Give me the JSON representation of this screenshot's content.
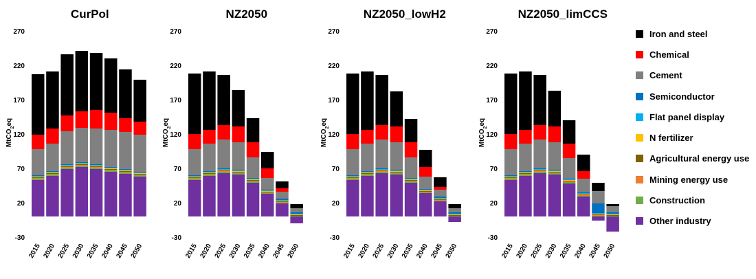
{
  "chart_data": {
    "type": "bar",
    "stacked": true,
    "ylabel": "MtCO2eq",
    "ylim": [
      -30,
      270
    ],
    "yticks": [
      270,
      220,
      170,
      120,
      70,
      20,
      -30
    ],
    "categories": [
      "2015",
      "2020",
      "2025",
      "2030",
      "2035",
      "2040",
      "2045",
      "2050"
    ],
    "legend_position": "right",
    "series_meta": [
      {
        "key": "other",
        "name": "Other industry",
        "color": "#7030A0"
      },
      {
        "key": "construction",
        "name": "Construction",
        "color": "#70AD47"
      },
      {
        "key": "mining",
        "name": "Mining energy use",
        "color": "#ED7D31"
      },
      {
        "key": "agri",
        "name": "Agricultural energy use",
        "color": "#806000"
      },
      {
        "key": "nfert",
        "name": "N fertilizer",
        "color": "#FFC000"
      },
      {
        "key": "fpd",
        "name": "Flat panel display",
        "color": "#00B0F0"
      },
      {
        "key": "semi",
        "name": "Semiconductor",
        "color": "#0070C0"
      },
      {
        "key": "cement",
        "name": "Cement",
        "color": "#808080"
      },
      {
        "key": "chemical",
        "name": "Chemical",
        "color": "#FF0000"
      },
      {
        "key": "iron",
        "name": "Iron and steel",
        "color": "#000000"
      }
    ],
    "legend_order": [
      "iron",
      "chemical",
      "cement",
      "semi",
      "fpd",
      "nfert",
      "agri",
      "mining",
      "construction",
      "other"
    ],
    "panels": [
      {
        "title": "CurPol",
        "series": {
          "other": [
            53,
            59,
            69,
            72,
            69,
            65,
            62,
            58
          ],
          "construction": [
            2,
            2,
            2,
            2,
            2,
            2,
            2,
            2
          ],
          "mining": [
            1,
            1,
            1,
            1,
            1,
            1,
            1,
            1
          ],
          "agri": [
            1,
            1,
            1,
            1,
            1,
            1,
            1,
            1
          ],
          "nfert": [
            1,
            1,
            1,
            1,
            1,
            1,
            1,
            1
          ],
          "fpd": [
            1,
            1,
            1,
            1,
            1,
            1,
            1,
            1
          ],
          "semi": [
            1,
            1,
            1,
            1,
            1,
            1,
            1,
            1
          ],
          "cement": [
            38,
            40,
            48,
            50,
            52,
            54,
            54,
            54
          ],
          "chemical": [
            21,
            22,
            23,
            24,
            27,
            25,
            20,
            19
          ],
          "iron": [
            88,
            83,
            89,
            88,
            83,
            79,
            71,
            61
          ]
        }
      },
      {
        "title": "NZ2050",
        "series": {
          "other": [
            53,
            59,
            63,
            61,
            49,
            33,
            19,
            -10
          ],
          "construction": [
            2,
            2,
            2,
            2,
            2,
            1,
            1,
            1
          ],
          "mining": [
            1,
            1,
            1,
            1,
            1,
            1,
            1,
            0
          ],
          "agri": [
            1,
            1,
            1,
            1,
            1,
            1,
            1,
            1
          ],
          "nfert": [
            1,
            1,
            1,
            1,
            1,
            1,
            1,
            1
          ],
          "fpd": [
            1,
            1,
            1,
            1,
            1,
            1,
            1,
            1
          ],
          "semi": [
            1,
            1,
            1,
            1,
            1,
            1,
            2,
            2
          ],
          "cement": [
            38,
            40,
            42,
            40,
            30,
            17,
            10,
            6
          ],
          "chemical": [
            22,
            20,
            21,
            23,
            22,
            14,
            5,
            0
          ],
          "iron": [
            88,
            85,
            73,
            53,
            35,
            24,
            10,
            6
          ]
        }
      },
      {
        "title": "NZ2050_lowH2",
        "series": {
          "other": [
            53,
            59,
            63,
            61,
            49,
            34,
            22,
            -8
          ],
          "construction": [
            2,
            2,
            2,
            2,
            2,
            1,
            1,
            1
          ],
          "mining": [
            1,
            1,
            1,
            1,
            1,
            1,
            1,
            0
          ],
          "agri": [
            1,
            1,
            1,
            1,
            1,
            1,
            1,
            1
          ],
          "nfert": [
            1,
            1,
            1,
            1,
            1,
            1,
            1,
            1
          ],
          "fpd": [
            1,
            1,
            1,
            1,
            1,
            1,
            1,
            1
          ],
          "semi": [
            1,
            1,
            1,
            1,
            1,
            1,
            2,
            2
          ],
          "cement": [
            38,
            40,
            42,
            40,
            30,
            18,
            10,
            6
          ],
          "chemical": [
            22,
            20,
            21,
            23,
            22,
            14,
            4,
            0
          ],
          "iron": [
            88,
            85,
            73,
            51,
            34,
            25,
            14,
            6
          ]
        }
      },
      {
        "title": "NZ2050_limCCS",
        "series": {
          "other": [
            53,
            59,
            63,
            61,
            48,
            29,
            -6,
            -22
          ],
          "construction": [
            2,
            2,
            2,
            2,
            2,
            1,
            1,
            1
          ],
          "mining": [
            1,
            1,
            1,
            1,
            1,
            1,
            1,
            0
          ],
          "agri": [
            1,
            1,
            1,
            1,
            1,
            1,
            1,
            1
          ],
          "nfert": [
            1,
            1,
            1,
            1,
            1,
            1,
            1,
            1
          ],
          "fpd": [
            1,
            1,
            1,
            1,
            1,
            1,
            1,
            1
          ],
          "semi": [
            1,
            1,
            1,
            1,
            1,
            1,
            14,
            2
          ],
          "cement": [
            38,
            40,
            42,
            40,
            30,
            20,
            18,
            9
          ],
          "chemical": [
            22,
            20,
            21,
            23,
            21,
            11,
            0,
            0
          ],
          "iron": [
            88,
            85,
            73,
            52,
            34,
            24,
            12,
            3
          ]
        }
      }
    ]
  }
}
